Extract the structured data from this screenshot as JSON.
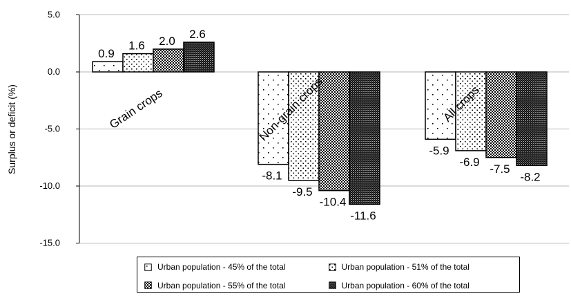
{
  "chart_data": {
    "type": "bar",
    "categories": [
      "Grain crops",
      "Non-grain crops",
      "All crops"
    ],
    "series": [
      {
        "name": "Urban population - 45% of the total",
        "values": [
          0.9,
          -8.1,
          -5.9
        ],
        "pattern": "sparse-dots"
      },
      {
        "name": "Urban population - 51% of the total",
        "values": [
          1.6,
          -9.5,
          -6.9
        ],
        "pattern": "medium-dots"
      },
      {
        "name": "Urban population - 55% of the total",
        "values": [
          2.0,
          -10.4,
          -7.5
        ],
        "pattern": "checker"
      },
      {
        "name": "Urban population - 60% of the total",
        "values": [
          2.6,
          -11.6,
          -8.2
        ],
        "pattern": "dense-checker"
      }
    ],
    "value_labels": [
      [
        "0.9",
        "-8.1",
        "-5.9"
      ],
      [
        "1.6",
        "-9.5",
        "-6.9"
      ],
      [
        "2.0",
        "-10.4",
        "-7.5"
      ],
      [
        "2.6",
        "-11.6",
        "-8.2"
      ]
    ],
    "title": "",
    "xlabel": "",
    "ylabel": "Surplus or deficit (%)",
    "ylim": [
      -15,
      5
    ],
    "yticks": [
      5,
      0,
      -5,
      -10,
      -15
    ],
    "ytick_labels": [
      "5.0",
      "0.0",
      "-5.0",
      "-10.0",
      "-15.0"
    ],
    "grid": true,
    "legend_position": "bottom"
  }
}
